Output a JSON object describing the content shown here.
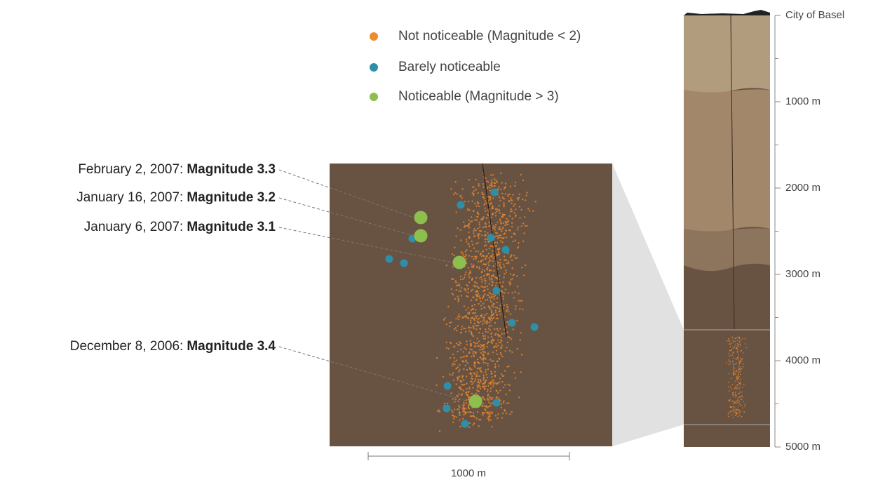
{
  "legend": [
    {
      "label": "Not noticeable (Magnitude < 2)",
      "color": "#ee8a2f"
    },
    {
      "label": "Barely noticeable",
      "color": "#2f8fa8"
    },
    {
      "label": "Noticeable (Magnitude > 3)",
      "color": "#8dbf4e"
    }
  ],
  "annotations": [
    {
      "date": "February 2, 2007:",
      "magnitude": "Magnitude 3.3"
    },
    {
      "date": "January 16, 2007:",
      "magnitude": "Magnitude 3.2"
    },
    {
      "date": "January 6, 2007:",
      "magnitude": "Magnitude 3.1"
    },
    {
      "date": "December 8, 2006:",
      "magnitude": "Magnitude 3.4"
    }
  ],
  "depth_scale": {
    "labels": [
      "City of Basel",
      "1000 m",
      "2000 m",
      "3000 m",
      "4000 m",
      "5000 m"
    ]
  },
  "scale_bar": {
    "label": "1000 m"
  }
}
